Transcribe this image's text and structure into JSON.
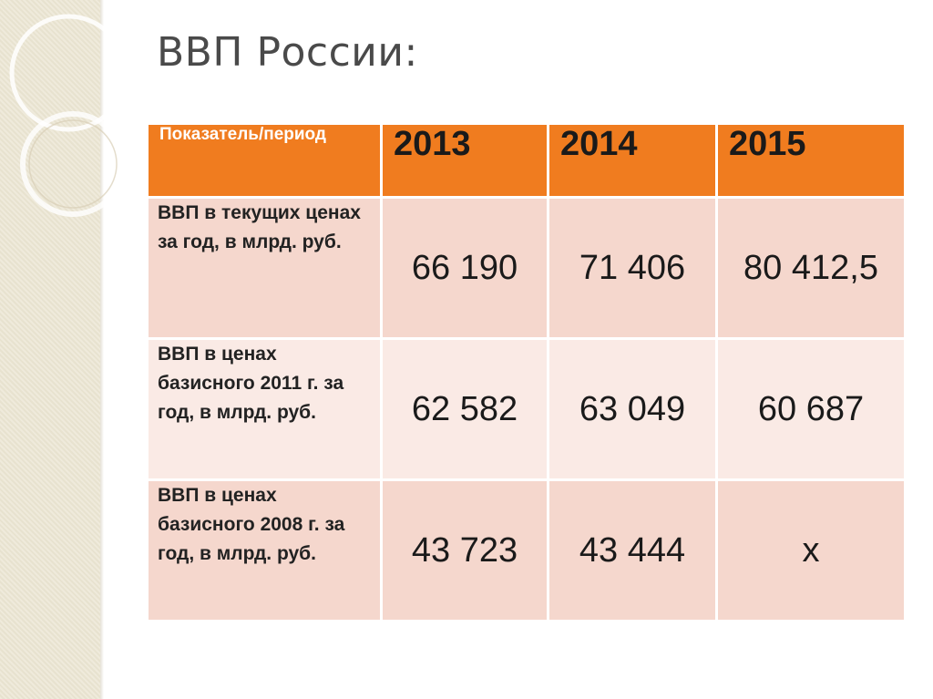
{
  "title": "ВВП России:",
  "table": {
    "header": {
      "label": "Показатель/период",
      "years": [
        "2013",
        "2014",
        "2015"
      ]
    },
    "rows": [
      {
        "label": "ВВП в текущих ценах за год, в млрд. руб.",
        "values": [
          "66 190",
          "71 406",
          "80 412,5"
        ]
      },
      {
        "label": "ВВП в ценах базисного 2011 г. за год, в млрд. руб.",
        "values": [
          "62 582",
          "63 049",
          "60 687"
        ]
      },
      {
        "label": "ВВП в ценах базисного 2008 г. за год, в млрд. руб.",
        "values": [
          "43 723",
          "43 444",
          "х"
        ]
      }
    ]
  },
  "colors": {
    "header_bg": "#f07c1f",
    "row_dark": "#f5d7cd",
    "row_light": "#faeae5",
    "side_band": "#ece6d3"
  }
}
